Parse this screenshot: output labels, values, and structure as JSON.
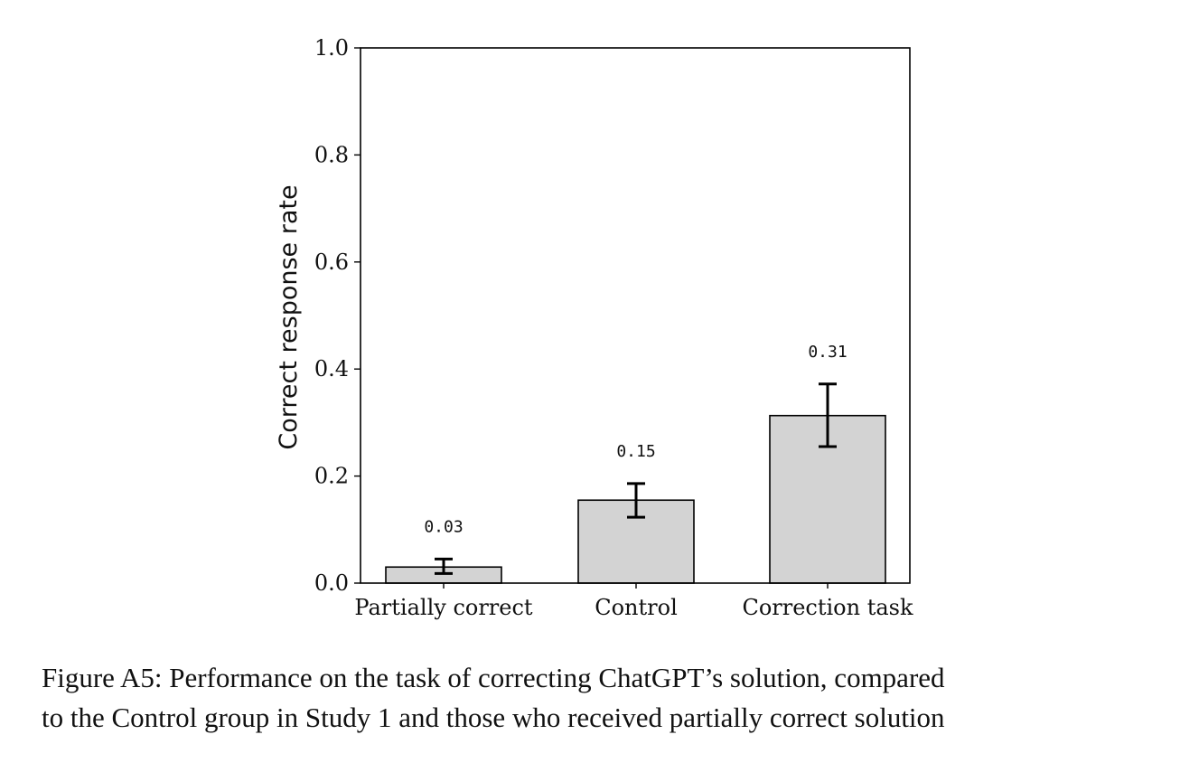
{
  "chart_data": {
    "type": "bar",
    "categories": [
      "Partially correct",
      "Control",
      "Correction task"
    ],
    "values": [
      0.03,
      0.155,
      0.313
    ],
    "data_labels": [
      "0.03",
      "0.15",
      "0.31"
    ],
    "error_bars": [
      {
        "low": 0.018,
        "high": 0.045
      },
      {
        "low": 0.123,
        "high": 0.186
      },
      {
        "low": 0.255,
        "high": 0.372
      }
    ],
    "ylabel": "Correct response rate",
    "ylim": [
      0,
      1.0
    ],
    "yticks": [
      "0.0",
      "0.2",
      "0.4",
      "0.6",
      "0.8",
      "1.0"
    ],
    "grid": false,
    "colors": {
      "bar_fill": "#d3d3d3",
      "bar_edge": "#000000",
      "error_bar": "#000000"
    }
  },
  "caption": {
    "line1": "Figure A5: Performance on the task of correcting ChatGPT’s solution, compared",
    "line2": "to the Control group in Study 1 and those who received partially correct solution"
  }
}
